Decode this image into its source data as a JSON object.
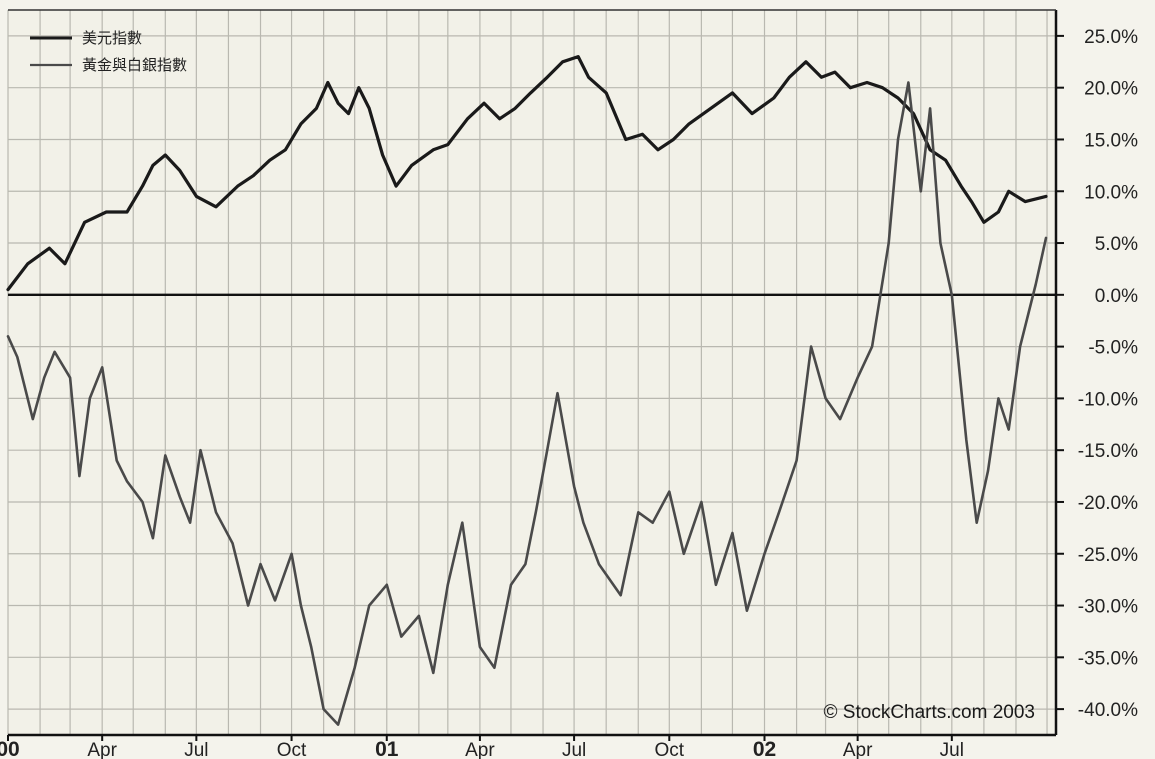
{
  "chart_data": {
    "type": "line",
    "xlabel": "",
    "ylabel": "",
    "ylim": [
      -42.5,
      27.5
    ],
    "y_ticks": [
      "25.0%",
      "20.0%",
      "15.0%",
      "10.0%",
      "5.0%",
      "0.0%",
      "-5.0%",
      "-10.0%",
      "-15.0%",
      "-20.0%",
      "-25.0%",
      "-30.0%",
      "-35.0%",
      "-40.0%"
    ],
    "y_tick_values": [
      25,
      20,
      15,
      10,
      5,
      0,
      -5,
      -10,
      -15,
      -20,
      -25,
      -30,
      -35,
      -40
    ],
    "x_range": [
      "2000-01-01",
      "2002-09-30"
    ],
    "x_ticks": [
      {
        "label": "00",
        "date": "2000-01-01",
        "year": true
      },
      {
        "label": "Apr",
        "date": "2000-04-01",
        "year": false
      },
      {
        "label": "Jul",
        "date": "2000-07-01",
        "year": false
      },
      {
        "label": "Oct",
        "date": "2000-10-01",
        "year": false
      },
      {
        "label": "01",
        "date": "2001-01-01",
        "year": true
      },
      {
        "label": "Apr",
        "date": "2001-04-01",
        "year": false
      },
      {
        "label": "Jul",
        "date": "2001-07-01",
        "year": false
      },
      {
        "label": "Oct",
        "date": "2001-10-01",
        "year": false
      },
      {
        "label": "02",
        "date": "2002-01-01",
        "year": true
      },
      {
        "label": "Apr",
        "date": "2002-04-01",
        "year": false
      },
      {
        "label": "Jul",
        "date": "2002-07-01",
        "year": false
      }
    ],
    "grid": true,
    "legend_position": "top-left",
    "credit": "© StockCharts.com 2003",
    "series": [
      {
        "name": "美元指數",
        "color": "#1a1a1a",
        "x": [
          "2000-01-01",
          "2000-01-20",
          "2000-02-10",
          "2000-02-25",
          "2000-03-15",
          "2000-04-05",
          "2000-04-25",
          "2000-05-10",
          "2000-05-20",
          "2000-06-01",
          "2000-06-15",
          "2000-07-01",
          "2000-07-20",
          "2000-08-10",
          "2000-08-25",
          "2000-09-10",
          "2000-09-25",
          "2000-10-10",
          "2000-10-25",
          "2000-11-05",
          "2000-11-15",
          "2000-11-25",
          "2000-12-05",
          "2000-12-15",
          "2000-12-28",
          "2001-01-10",
          "2001-01-25",
          "2001-02-15",
          "2001-03-01",
          "2001-03-20",
          "2001-04-05",
          "2001-04-20",
          "2001-05-05",
          "2001-05-20",
          "2001-06-05",
          "2001-06-20",
          "2001-07-05",
          "2001-07-15",
          "2001-08-01",
          "2001-08-20",
          "2001-09-05",
          "2001-09-20",
          "2001-10-05",
          "2001-10-20",
          "2001-11-10",
          "2001-12-01",
          "2001-12-20",
          "2002-01-10",
          "2002-01-25",
          "2002-02-10",
          "2002-02-25",
          "2002-03-10",
          "2002-03-25",
          "2002-04-10",
          "2002-04-25",
          "2002-05-10",
          "2002-05-25",
          "2002-06-10",
          "2002-06-25",
          "2002-07-10",
          "2002-07-20",
          "2002-08-01",
          "2002-08-15",
          "2002-08-25",
          "2002-09-10",
          "2002-09-30"
        ],
        "values": [
          0.5,
          3.0,
          4.5,
          3.0,
          7.0,
          8.0,
          8.0,
          10.5,
          12.5,
          13.5,
          12.0,
          9.5,
          8.5,
          10.5,
          11.5,
          13.0,
          14.0,
          16.5,
          18.0,
          20.5,
          18.5,
          17.5,
          20.0,
          18.0,
          13.5,
          10.5,
          12.5,
          14.0,
          14.5,
          17.0,
          18.5,
          17.0,
          18.0,
          19.5,
          21.0,
          22.5,
          23.0,
          21.0,
          19.5,
          15.0,
          15.5,
          14.0,
          15.0,
          16.5,
          18.0,
          19.5,
          17.5,
          19.0,
          21.0,
          22.5,
          21.0,
          21.5,
          20.0,
          20.5,
          20.0,
          19.0,
          17.5,
          14.0,
          13.0,
          10.5,
          9.0,
          7.0,
          8.0,
          10.0,
          9.0,
          9.5
        ]
      },
      {
        "name": "黃金與白銀指數",
        "color": "#4a4a4a",
        "x": [
          "2000-01-01",
          "2000-01-10",
          "2000-01-25",
          "2000-02-05",
          "2000-02-15",
          "2000-03-01",
          "2000-03-10",
          "2000-03-20",
          "2000-04-01",
          "2000-04-15",
          "2000-04-25",
          "2000-05-10",
          "2000-05-20",
          "2000-06-01",
          "2000-06-15",
          "2000-06-25",
          "2000-07-05",
          "2000-07-20",
          "2000-08-05",
          "2000-08-20",
          "2000-09-01",
          "2000-09-15",
          "2000-10-01",
          "2000-10-10",
          "2000-10-20",
          "2000-11-01",
          "2000-11-15",
          "2000-12-01",
          "2000-12-15",
          "2001-01-01",
          "2001-01-15",
          "2001-02-01",
          "2001-02-15",
          "2001-03-01",
          "2001-03-15",
          "2001-04-01",
          "2001-04-15",
          "2001-05-01",
          "2001-05-15",
          "2001-05-25",
          "2001-06-05",
          "2001-06-15",
          "2001-07-01",
          "2001-07-10",
          "2001-07-25",
          "2001-08-15",
          "2001-09-01",
          "2001-09-15",
          "2001-10-01",
          "2001-10-15",
          "2001-11-01",
          "2001-11-15",
          "2001-12-01",
          "2001-12-15",
          "2002-01-01",
          "2002-01-15",
          "2002-02-01",
          "2002-02-15",
          "2002-03-01",
          "2002-03-15",
          "2002-04-01",
          "2002-04-15",
          "2002-05-01",
          "2002-05-10",
          "2002-05-20",
          "2002-06-01",
          "2002-06-10",
          "2002-06-20",
          "2002-07-01",
          "2002-07-15",
          "2002-07-25",
          "2002-08-05",
          "2002-08-15",
          "2002-08-25",
          "2002-09-05",
          "2002-09-20",
          "2002-09-30"
        ],
        "values": [
          -4.0,
          -6.0,
          -12.0,
          -8.0,
          -5.5,
          -8.0,
          -17.5,
          -10.0,
          -7.0,
          -16.0,
          -18.0,
          -20.0,
          -23.5,
          -15.5,
          -19.5,
          -22.0,
          -15.0,
          -21.0,
          -24.0,
          -30.0,
          -26.0,
          -29.5,
          -25.0,
          -30.0,
          -34.0,
          -40.0,
          -41.5,
          -36.0,
          -30.0,
          -28.0,
          -33.0,
          -31.0,
          -36.5,
          -28.0,
          -22.0,
          -34.0,
          -36.0,
          -28.0,
          -26.0,
          -21.0,
          -15.0,
          -9.5,
          -18.5,
          -22.0,
          -26.0,
          -29.0,
          -21.0,
          -22.0,
          -19.0,
          -25.0,
          -20.0,
          -28.0,
          -23.0,
          -30.5,
          -25.0,
          -21.0,
          -16.0,
          -5.0,
          -10.0,
          -12.0,
          -8.0,
          -5.0,
          5.0,
          15.0,
          20.5,
          10.0,
          18.0,
          5.0,
          0.0,
          -14.0,
          -22.0,
          -17.0,
          -10.0,
          -13.0,
          -5.0,
          1.0,
          5.5
        ]
      }
    ]
  }
}
